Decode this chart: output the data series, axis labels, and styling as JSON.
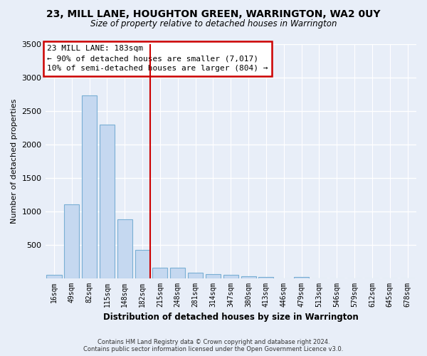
{
  "title": "23, MILL LANE, HOUGHTON GREEN, WARRINGTON, WA2 0UY",
  "subtitle": "Size of property relative to detached houses in Warrington",
  "xlabel": "Distribution of detached houses by size in Warrington",
  "ylabel": "Number of detached properties",
  "bar_labels": [
    "16sqm",
    "49sqm",
    "82sqm",
    "115sqm",
    "148sqm",
    "182sqm",
    "215sqm",
    "248sqm",
    "281sqm",
    "314sqm",
    "347sqm",
    "380sqm",
    "413sqm",
    "446sqm",
    "479sqm",
    "513sqm",
    "546sqm",
    "579sqm",
    "612sqm",
    "645sqm",
    "678sqm"
  ],
  "bar_values": [
    50,
    1100,
    2730,
    2290,
    880,
    430,
    165,
    160,
    90,
    60,
    50,
    35,
    25,
    0,
    25,
    0,
    0,
    0,
    0,
    0,
    0
  ],
  "bar_color": "#c5d8f0",
  "bar_edgecolor": "#7aafd4",
  "vline_index": 5,
  "annotation_text_line1": "23 MILL LANE: 183sqm",
  "annotation_text_line2": "← 90% of detached houses are smaller (7,017)",
  "annotation_text_line3": "10% of semi-detached houses are larger (804) →",
  "annotation_box_color": "white",
  "annotation_border_color": "#cc0000",
  "vline_color": "#cc0000",
  "ylim": [
    0,
    3500
  ],
  "yticks": [
    0,
    500,
    1000,
    1500,
    2000,
    2500,
    3000,
    3500
  ],
  "footer_line1": "Contains HM Land Registry data © Crown copyright and database right 2024.",
  "footer_line2": "Contains public sector information licensed under the Open Government Licence v3.0.",
  "bg_color": "#e8eef8",
  "grid_color": "#ffffff"
}
